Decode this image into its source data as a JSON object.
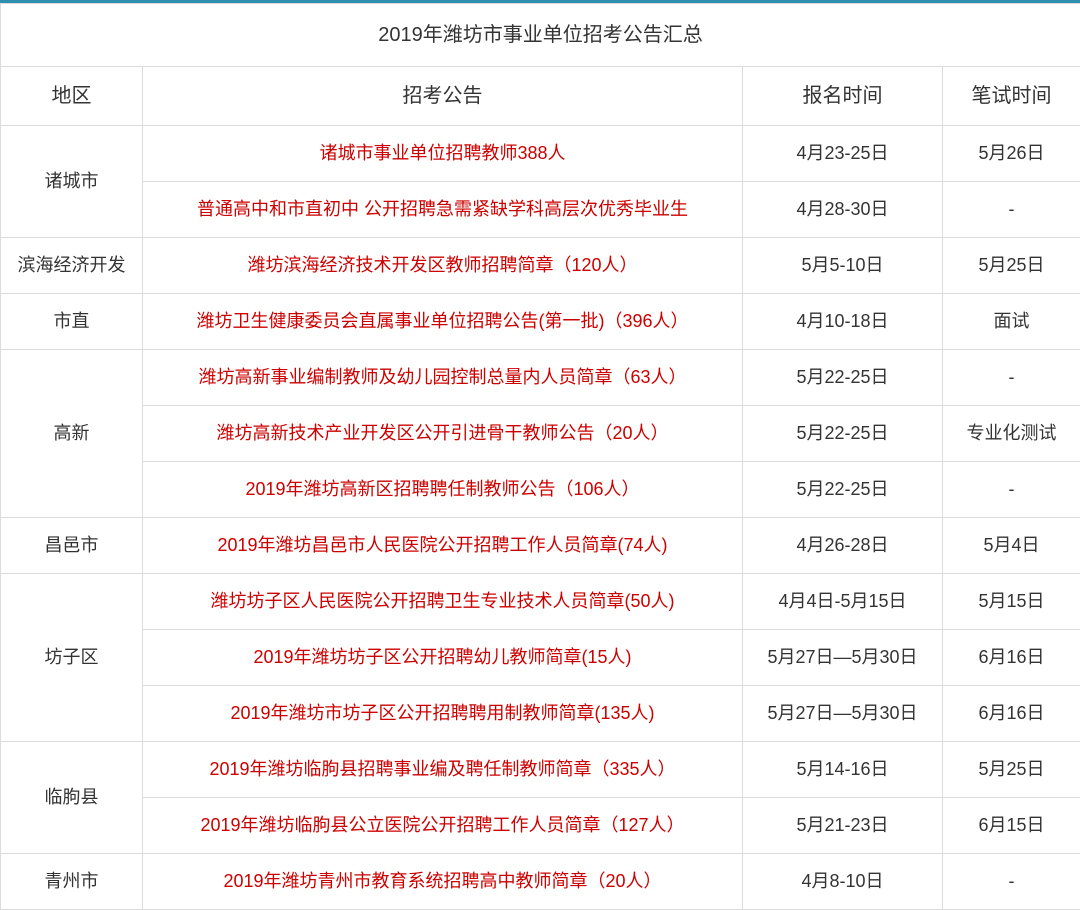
{
  "title": "2019年潍坊市事业单位招考公告汇总",
  "headers": {
    "area": "地区",
    "notice": "招考公告",
    "signup": "报名时间",
    "exam": "笔试时间"
  },
  "colors": {
    "border_top": "#2e8fb1",
    "cell_border": "#dcdcdc",
    "text": "#333333",
    "link": "#cc0000",
    "background": "#ffffff"
  },
  "rows": [
    {
      "area": "诸城市",
      "notice": "诸城市事业单位招聘教师388人",
      "signup": "4月23-25日",
      "exam": "5月26日",
      "area_rowspan": 2
    },
    {
      "area": "",
      "notice": "普通高中和市直初中 公开招聘急需紧缺学科高层次优秀毕业生",
      "signup": "4月28-30日",
      "exam": "-"
    },
    {
      "area": "滨海经济开发",
      "notice": "潍坊滨海经济技术开发区教师招聘简章（120人）",
      "signup": "5月5-10日",
      "exam": "5月25日",
      "area_rowspan": 1
    },
    {
      "area": "市直",
      "notice": "潍坊卫生健康委员会直属事业单位招聘公告(第一批)（396人）",
      "signup": "4月10-18日",
      "exam": "面试",
      "area_rowspan": 1
    },
    {
      "area": "高新",
      "notice": "潍坊高新事业编制教师及幼儿园控制总量内人员简章（63人）",
      "signup": "5月22-25日",
      "exam": "-",
      "area_rowspan": 3
    },
    {
      "area": "",
      "notice": "潍坊高新技术产业开发区公开引进骨干教师公告（20人）",
      "signup": "5月22-25日",
      "exam": "专业化测试"
    },
    {
      "area": "",
      "notice": "2019年潍坊高新区招聘聘任制教师公告（106人）",
      "signup": "5月22-25日",
      "exam": "-"
    },
    {
      "area": "昌邑市",
      "notice": "2019年潍坊昌邑市人民医院公开招聘工作人员简章(74人)",
      "signup": "4月26-28日",
      "exam": "5月4日",
      "area_rowspan": 1
    },
    {
      "area": "坊子区",
      "notice": "潍坊坊子区人民医院公开招聘卫生专业技术人员简章(50人)",
      "signup": "4月4日-5月15日",
      "exam": "5月15日",
      "area_rowspan": 3
    },
    {
      "area": "",
      "notice": "2019年潍坊坊子区公开招聘幼儿教师简章(15人)",
      "signup": "5月27日—5月30日",
      "exam": "6月16日"
    },
    {
      "area": "",
      "notice": "2019年潍坊市坊子区公开招聘聘用制教师简章(135人)",
      "signup": "5月27日—5月30日",
      "exam": "6月16日"
    },
    {
      "area": "临朐县",
      "notice": "2019年潍坊临朐县招聘事业编及聘任制教师简章（335人）",
      "signup": "5月14-16日",
      "exam": "5月25日",
      "area_rowspan": 2
    },
    {
      "area": "",
      "notice": "2019年潍坊临朐县公立医院公开招聘工作人员简章（127人）",
      "signup": "5月21-23日",
      "exam": "6月15日"
    },
    {
      "area": "青州市",
      "notice": "2019年潍坊青州市教育系统招聘高中教师简章（20人）",
      "signup": "4月8-10日",
      "exam": "-",
      "area_rowspan": 1
    }
  ]
}
